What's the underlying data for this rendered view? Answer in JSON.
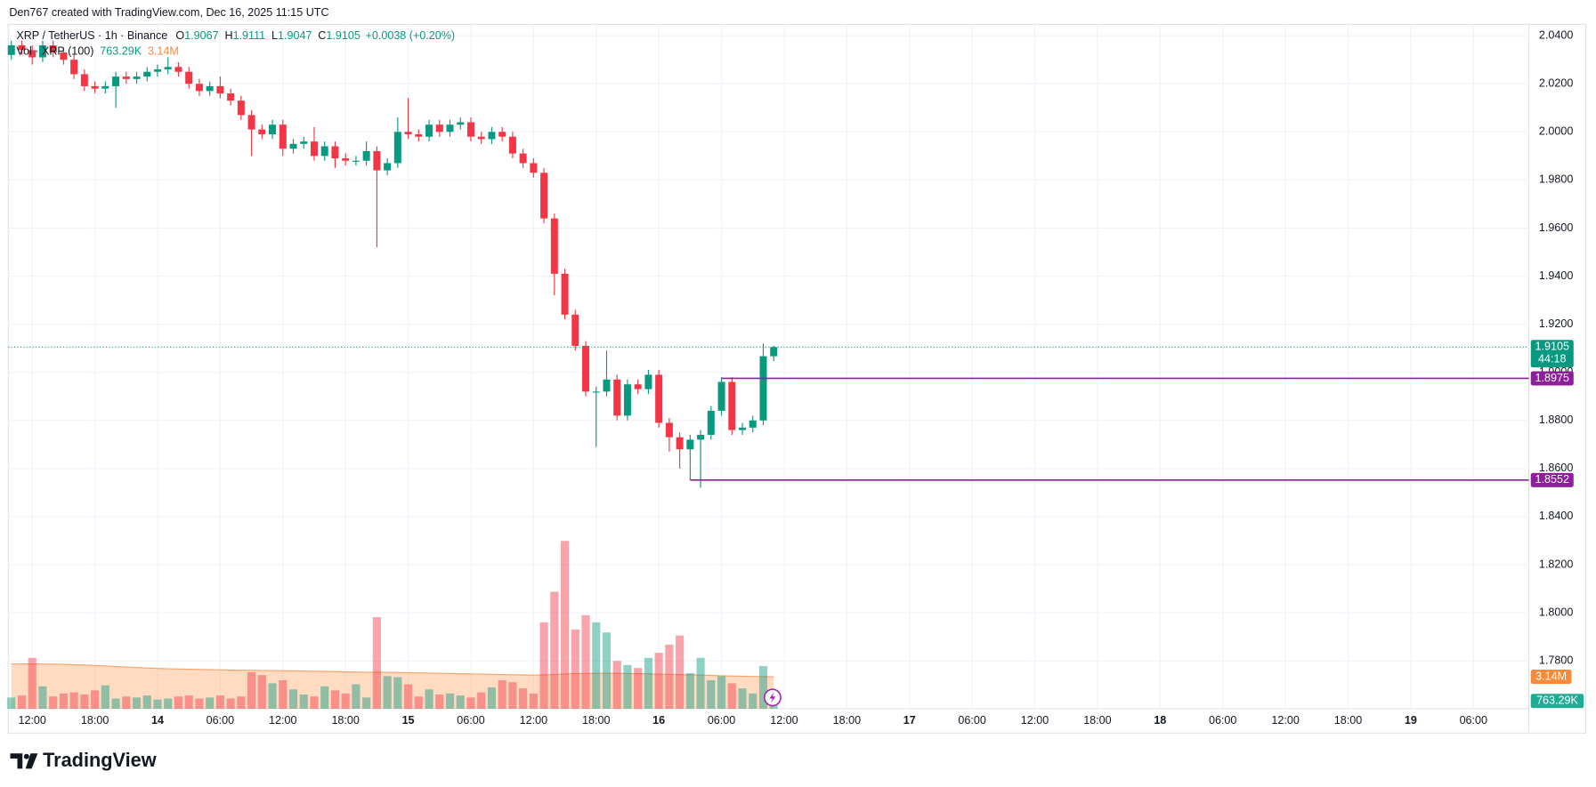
{
  "header": {
    "attribution": "Den767 created with TradingView.com, Dec 16, 2025 11:15 UTC"
  },
  "legend": {
    "symbol": "XRP / TetherUS · 1h · Binance",
    "ohlc": [
      {
        "label": "O",
        "value": "1.9067"
      },
      {
        "label": "H",
        "value": "1.9111"
      },
      {
        "label": "L",
        "value": "1.9047"
      },
      {
        "label": "C",
        "value": "1.9105"
      }
    ],
    "change": "+0.0038 (+0.20%)",
    "volume_title": "Vol · XRP (100)",
    "volume_value": "763.29K",
    "volume_ma_value": "3.14M"
  },
  "footer": {
    "brand": "TradingView"
  },
  "chart_data": {
    "type": "candlestick",
    "up_color": "#089981",
    "down_color": "#f23645",
    "x": [
      0,
      1,
      2,
      3,
      4,
      5,
      6,
      7,
      8,
      9,
      10,
      11,
      12,
      13,
      14,
      15,
      16,
      17,
      18,
      19,
      20,
      21,
      22,
      23,
      24,
      25,
      26,
      27,
      28,
      29,
      30,
      31,
      32,
      33,
      34,
      35,
      36,
      37,
      38,
      39,
      40,
      41,
      42,
      43,
      44,
      45,
      46,
      47,
      48,
      49,
      50,
      51,
      52,
      53,
      54,
      55,
      56,
      57,
      58,
      59,
      60,
      61,
      62,
      63,
      64,
      65,
      66,
      67,
      68,
      69,
      70,
      71,
      72,
      73
    ],
    "open": [
      2.032,
      2.036,
      2.034,
      2.031,
      2.036,
      2.033,
      2.03,
      2.024,
      2.019,
      2.018,
      2.019,
      2.023,
      2.022,
      2.023,
      2.025,
      2.026,
      2.027,
      2.025,
      2.02,
      2.017,
      2.019,
      2.016,
      2.013,
      2.007,
      2.001,
      1.999,
      2.003,
      1.993,
      1.995,
      1.996,
      1.99,
      1.994,
      1.989,
      1.988,
      1.988,
      1.992,
      1.984,
      1.987,
      2.0,
      1.999,
      1.998,
      2.003,
      2.0,
      2.003,
      2.004,
      1.998,
      1.997,
      2.0,
      1.998,
      1.991,
      1.987,
      1.983,
      1.964,
      1.941,
      1.924,
      1.911,
      1.892,
      1.892,
      1.897,
      1.882,
      1.895,
      1.893,
      1.899,
      1.879,
      1.873,
      1.868,
      1.872,
      1.874,
      1.884,
      1.896,
      1.876,
      1.877,
      1.88,
      1.9067
    ],
    "high": [
      2.038,
      2.038,
      2.036,
      2.038,
      2.038,
      2.035,
      2.032,
      2.026,
      2.021,
      2.021,
      2.025,
      2.025,
      2.025,
      2.027,
      2.028,
      2.031,
      2.029,
      2.027,
      2.022,
      2.021,
      2.023,
      2.018,
      2.015,
      2.009,
      2.003,
      2.005,
      2.005,
      1.997,
      1.998,
      2.002,
      1.996,
      1.996,
      1.991,
      1.99,
      1.996,
      1.994,
      1.989,
      2.006,
      2.014,
      2.001,
      2.005,
      2.005,
      2.005,
      2.006,
      2.006,
      2.0,
      2.002,
      2.002,
      2.0,
      1.993,
      1.989,
      1.985,
      1.966,
      1.943,
      1.926,
      1.913,
      1.894,
      1.909,
      1.899,
      1.897,
      1.897,
      1.901,
      1.901,
      1.881,
      1.875,
      1.874,
      1.876,
      1.886,
      1.898,
      1.898,
      1.879,
      1.882,
      1.912,
      1.9111
    ],
    "low": [
      2.03,
      2.032,
      2.028,
      2.029,
      2.031,
      2.028,
      2.022,
      2.017,
      2.016,
      2.016,
      2.01,
      2.02,
      2.02,
      2.021,
      2.023,
      2.024,
      2.023,
      2.018,
      2.015,
      2.015,
      2.014,
      2.011,
      2.005,
      1.99,
      1.997,
      1.997,
      1.99,
      1.991,
      1.993,
      1.988,
      1.988,
      1.985,
      1.986,
      1.986,
      1.986,
      1.952,
      1.982,
      1.985,
      1.997,
      1.996,
      1.996,
      1.998,
      1.998,
      2.001,
      1.996,
      1.995,
      1.995,
      1.996,
      1.989,
      1.985,
      1.981,
      1.962,
      1.932,
      1.922,
      1.909,
      1.89,
      1.869,
      1.89,
      1.88,
      1.88,
      1.891,
      1.891,
      1.877,
      1.867,
      1.86,
      1.8552,
      1.852,
      1.872,
      1.882,
      1.874,
      1.874,
      1.875,
      1.878,
      1.9047
    ],
    "close": [
      2.036,
      2.034,
      2.031,
      2.036,
      2.033,
      2.03,
      2.024,
      2.019,
      2.018,
      2.019,
      2.023,
      2.022,
      2.023,
      2.025,
      2.026,
      2.027,
      2.025,
      2.02,
      2.017,
      2.019,
      2.016,
      2.013,
      2.007,
      2.001,
      1.999,
      2.003,
      1.993,
      1.995,
      1.996,
      1.99,
      1.994,
      1.989,
      1.988,
      1.988,
      1.992,
      1.984,
      1.987,
      2.0,
      1.999,
      1.998,
      2.003,
      2.0,
      2.003,
      2.004,
      1.998,
      1.997,
      2.0,
      1.998,
      1.991,
      1.987,
      1.983,
      1.964,
      1.941,
      1.924,
      1.911,
      1.892,
      1.892,
      1.897,
      1.882,
      1.895,
      1.893,
      1.899,
      1.879,
      1.873,
      1.868,
      1.872,
      1.874,
      1.884,
      1.896,
      1.876,
      1.877,
      1.88,
      1.9067,
      1.9105
    ],
    "xlim": [
      -0.3,
      145.3
    ],
    "ylim": [
      1.7601,
      2.0447
    ],
    "grid": true,
    "yticks": [
      {
        "value": 1.78,
        "label": "1.7800"
      },
      {
        "value": 1.8,
        "label": "1.8000"
      },
      {
        "value": 1.82,
        "label": "1.8200"
      },
      {
        "value": 1.84,
        "label": "1.8400"
      },
      {
        "value": 1.86,
        "label": "1.8600"
      },
      {
        "value": 1.88,
        "label": "1.8800"
      },
      {
        "value": 1.9,
        "label": "1.9000"
      },
      {
        "value": 1.92,
        "label": "1.9200"
      },
      {
        "value": 1.94,
        "label": "1.9400"
      },
      {
        "value": 1.96,
        "label": "1.9600"
      },
      {
        "value": 1.98,
        "label": "1.9800"
      },
      {
        "value": 2.0,
        "label": "2.0000"
      },
      {
        "value": 2.02,
        "label": "2.0200"
      },
      {
        "value": 2.04,
        "label": "2.0400"
      }
    ],
    "xticks": [
      {
        "value": 2,
        "label": "12:00"
      },
      {
        "value": 8,
        "label": "18:00"
      },
      {
        "value": 14,
        "label": "14"
      },
      {
        "value": 20,
        "label": "06:00"
      },
      {
        "value": 26,
        "label": "12:00"
      },
      {
        "value": 32,
        "label": "18:00"
      },
      {
        "value": 38,
        "label": "15"
      },
      {
        "value": 44,
        "label": "06:00"
      },
      {
        "value": 50,
        "label": "12:00"
      },
      {
        "value": 56,
        "label": "18:00"
      },
      {
        "value": 62,
        "label": "16"
      },
      {
        "value": 68,
        "label": "06:00"
      },
      {
        "value": 74,
        "label": "12:00"
      },
      {
        "value": 80,
        "label": "18:00"
      },
      {
        "value": 86,
        "label": "17"
      },
      {
        "value": 92,
        "label": "06:00"
      },
      {
        "value": 98,
        "label": "12:00"
      },
      {
        "value": 104,
        "label": "18:00"
      },
      {
        "value": 110,
        "label": "18"
      },
      {
        "value": 116,
        "label": "06:00"
      },
      {
        "value": 122,
        "label": "12:00"
      },
      {
        "value": 128,
        "label": "18:00"
      },
      {
        "value": 134,
        "label": "19"
      },
      {
        "value": 140,
        "label": "06:00"
      }
    ],
    "last_price": {
      "value": 1.9105,
      "label": "1.9105",
      "countdown": "44:18",
      "color": "#089981"
    },
    "levels": [
      {
        "value": 1.8975,
        "label": "1.8975",
        "from": 68,
        "color": "#8e1f9c"
      },
      {
        "value": 1.8552,
        "label": "1.8552",
        "from": 65,
        "color": "#8e1f9c"
      }
    ],
    "volume": {
      "name": "Vol · XRP",
      "ylim": [
        0,
        20000000
      ],
      "up_color": "rgba(8,153,129,0.45)",
      "down_color": "rgba(242,54,69,0.45)",
      "tag_color": "#22ab94",
      "values": [
        1100000,
        1300000,
        5000000,
        2200000,
        1200000,
        1500000,
        1600000,
        1400000,
        1800000,
        2300000,
        1000000,
        1200000,
        1100000,
        1300000,
        900000,
        1000000,
        1200000,
        1300000,
        1000000,
        1100000,
        1300000,
        1000000,
        1200000,
        3600000,
        3300000,
        2500000,
        2800000,
        1900000,
        1400000,
        1200000,
        2200000,
        1800000,
        1500000,
        2400000,
        1100000,
        9000000,
        3200000,
        3100000,
        2400000,
        1200000,
        1900000,
        1400000,
        1500000,
        1300000,
        1100000,
        1600000,
        2100000,
        2800000,
        2600000,
        2000000,
        1500000,
        8500000,
        11500000,
        16500000,
        7800000,
        9200000,
        8500000,
        7500000,
        4700000,
        4300000,
        4000000,
        5000000,
        5500000,
        6300000,
        7200000,
        3500000,
        5000000,
        2800000,
        3200000,
        2500000,
        2000000,
        1500000,
        4200000,
        763290
      ],
      "last_label": "763.29K"
    },
    "volume_ma": {
      "name": "MA (100)",
      "color": "#f7a26b",
      "fill": "rgba(255,152,80,0.35)",
      "tag_color": "#f68a3b",
      "values": [
        4400000,
        4400000,
        4410000,
        4400000,
        4380000,
        4360000,
        4330000,
        4300000,
        4250000,
        4200000,
        4150000,
        4100000,
        4050000,
        4000000,
        3960000,
        3930000,
        3900000,
        3880000,
        3860000,
        3840000,
        3820000,
        3800000,
        3780000,
        3770000,
        3760000,
        3750000,
        3740000,
        3730000,
        3710000,
        3690000,
        3670000,
        3650000,
        3630000,
        3610000,
        3580000,
        3600000,
        3580000,
        3560000,
        3540000,
        3520000,
        3500000,
        3480000,
        3460000,
        3440000,
        3420000,
        3400000,
        3380000,
        3360000,
        3340000,
        3320000,
        3300000,
        3320000,
        3360000,
        3420000,
        3440000,
        3460000,
        3480000,
        3490000,
        3480000,
        3460000,
        3440000,
        3420000,
        3400000,
        3380000,
        3360000,
        3340000,
        3300000,
        3270000,
        3240000,
        3210000,
        3190000,
        3170000,
        3150000,
        3140000
      ],
      "last_label": "3.14M"
    }
  }
}
